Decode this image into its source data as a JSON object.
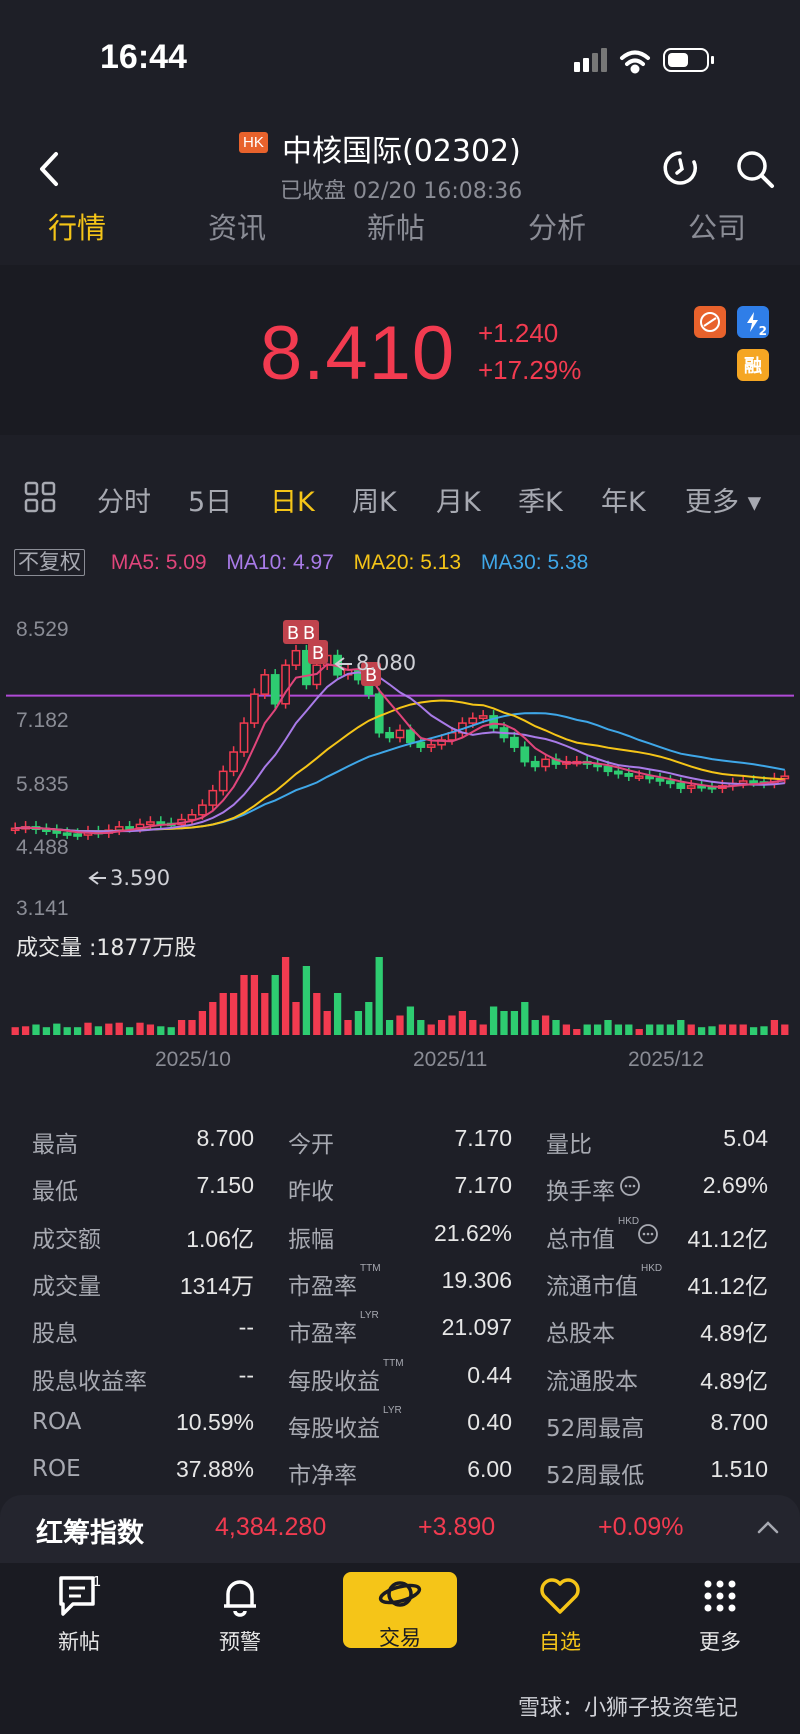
{
  "status_bar": {
    "time": "16:44"
  },
  "header": {
    "market_badge": "HK",
    "title": "中核国际(02302)",
    "subtitle": "已收盘 02/20 16:08:36"
  },
  "tabs": [
    "行情",
    "资讯",
    "新帖",
    "分析",
    "公司"
  ],
  "quote": {
    "price": "8.410",
    "change": "+1.240",
    "change_pct": "+17.29%",
    "badge_rong": "融",
    "badge_two": "2"
  },
  "period_tabs": [
    "分时",
    "5日",
    "日K",
    "周K",
    "月K",
    "季K",
    "年K",
    "更多 ▾"
  ],
  "ma": {
    "fq": "不复权",
    "ma5": "MA5: 5.09",
    "ma10": "MA10: 4.97",
    "ma20": "MA20: 5.13",
    "ma30": "MA30: 5.38"
  },
  "chart_data": {
    "type": "candlestick",
    "y_ticks": [
      "8.529",
      "7.182",
      "5.835",
      "4.488",
      "3.141"
    ],
    "ylim": [
      3.141,
      8.529
    ],
    "x_ticks": [
      "2025/10",
      "2025/11",
      "2025/12"
    ],
    "high_annotation": "8.080",
    "low_annotation": "3.590",
    "trade_markers": [
      "B",
      "B",
      "B",
      "B"
    ],
    "reference_price": 7.17,
    "volume_label": "成交量  :1877万股"
  },
  "stats": [
    [
      [
        "最高",
        "8.700"
      ],
      [
        "今开",
        "7.170"
      ],
      [
        "量比",
        "5.04"
      ]
    ],
    [
      [
        "最低",
        "7.150"
      ],
      [
        "昨收",
        "7.170"
      ],
      [
        "换手率",
        "2.69%"
      ]
    ],
    [
      [
        "成交额",
        "1.06亿"
      ],
      [
        "振幅",
        "21.62%"
      ],
      [
        "总市值",
        "41.12亿"
      ]
    ],
    [
      [
        "成交量",
        "1314万"
      ],
      [
        "市盈率",
        "19.306"
      ],
      [
        "流通市值",
        "41.12亿"
      ]
    ],
    [
      [
        "股息",
        "--"
      ],
      [
        "市盈率",
        "21.097"
      ],
      [
        "总股本",
        "4.89亿"
      ]
    ],
    [
      [
        "股息收益率",
        "--"
      ],
      [
        "每股收益",
        "0.44"
      ],
      [
        "流通股本",
        "4.89亿"
      ]
    ],
    [
      [
        "ROA",
        "10.59%"
      ],
      [
        "每股收益",
        "0.40"
      ],
      [
        "52周最高",
        "8.700"
      ]
    ],
    [
      [
        "ROE",
        "37.88%"
      ],
      [
        "市净率",
        "6.00"
      ],
      [
        "52周最低",
        "1.510"
      ]
    ]
  ],
  "stat_tags": {
    "ttm": "TTM",
    "lyr": "LYR",
    "hkd": "HKD"
  },
  "index_bar": {
    "name": "红筹指数",
    "value": "4,384.280",
    "change": "+3.890",
    "change_pct": "+0.09%"
  },
  "bottom_nav": [
    "新帖",
    "预警",
    "交易",
    "自选",
    "更多"
  ],
  "watermark": "雪球：小狮子投资笔记"
}
